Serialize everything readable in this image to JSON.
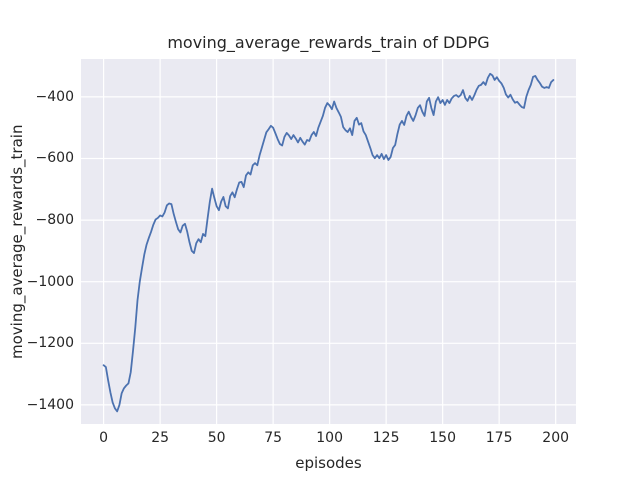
{
  "chart_data": {
    "type": "line",
    "title": "moving_average_rewards_train of DDPG",
    "xlabel": "episodes",
    "ylabel": "moving_average_rewards_train",
    "legend": null,
    "grid": true,
    "x_start": 0,
    "xticks": [
      0,
      25,
      50,
      75,
      100,
      125,
      150,
      175,
      200
    ],
    "yticks": [
      -400,
      -600,
      -800,
      -1000,
      -1200,
      -1400
    ],
    "xlim": [
      -10,
      209
    ],
    "ylim": [
      -1462,
      -277
    ],
    "colors": {
      "line": "#4c72b0",
      "plot_background": "#eaeaf2",
      "grid": "#ffffff",
      "text": "#262626",
      "figure_background": "#ffffff"
    },
    "series": [
      {
        "name": "moving_average_rewards_train",
        "values": [
          -1271,
          -1277,
          -1320,
          -1359,
          -1392,
          -1411,
          -1421,
          -1400,
          -1362,
          -1346,
          -1337,
          -1330,
          -1294,
          -1225,
          -1150,
          -1060,
          -1000,
          -955,
          -912,
          -880,
          -858,
          -838,
          -815,
          -798,
          -793,
          -785,
          -788,
          -775,
          -752,
          -746,
          -748,
          -780,
          -806,
          -830,
          -840,
          -818,
          -812,
          -838,
          -872,
          -900,
          -907,
          -875,
          -862,
          -872,
          -845,
          -852,
          -795,
          -740,
          -698,
          -728,
          -755,
          -768,
          -740,
          -725,
          -755,
          -762,
          -722,
          -710,
          -726,
          -700,
          -678,
          -676,
          -693,
          -655,
          -645,
          -652,
          -622,
          -615,
          -622,
          -590,
          -565,
          -540,
          -515,
          -505,
          -494,
          -500,
          -518,
          -537,
          -553,
          -558,
          -530,
          -517,
          -525,
          -537,
          -524,
          -535,
          -548,
          -533,
          -545,
          -555,
          -540,
          -543,
          -524,
          -514,
          -527,
          -500,
          -481,
          -462,
          -435,
          -420,
          -428,
          -440,
          -415,
          -436,
          -450,
          -465,
          -498,
          -508,
          -514,
          -502,
          -524,
          -478,
          -468,
          -490,
          -485,
          -512,
          -524,
          -545,
          -566,
          -589,
          -599,
          -589,
          -599,
          -585,
          -602,
          -589,
          -605,
          -595,
          -566,
          -556,
          -520,
          -490,
          -478,
          -491,
          -462,
          -448,
          -465,
          -478,
          -460,
          -436,
          -427,
          -448,
          -462,
          -415,
          -403,
          -436,
          -459,
          -415,
          -401,
          -420,
          -410,
          -426,
          -410,
          -420,
          -405,
          -397,
          -394,
          -400,
          -394,
          -378,
          -403,
          -413,
          -397,
          -410,
          -395,
          -377,
          -364,
          -361,
          -352,
          -361,
          -338,
          -325,
          -330,
          -345,
          -336,
          -348,
          -356,
          -370,
          -392,
          -402,
          -393,
          -408,
          -419,
          -416,
          -425,
          -433,
          -436,
          -400,
          -378,
          -361,
          -335,
          -332,
          -345,
          -355,
          -367,
          -371,
          -368,
          -371,
          -352,
          -345
        ]
      }
    ]
  }
}
